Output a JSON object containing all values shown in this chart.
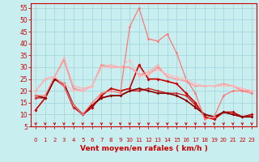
{
  "xlabel": "Vent moyen/en rafales ( km/h )",
  "xlim": [
    -0.5,
    23.5
  ],
  "ylim": [
    5,
    57
  ],
  "yticks": [
    5,
    10,
    15,
    20,
    25,
    30,
    35,
    40,
    45,
    50,
    55
  ],
  "xticks": [
    0,
    1,
    2,
    3,
    4,
    5,
    6,
    7,
    8,
    9,
    10,
    11,
    12,
    13,
    14,
    15,
    16,
    17,
    18,
    19,
    20,
    21,
    22,
    23
  ],
  "background_color": "#c8eef0",
  "grid_color": "#9fd4d8",
  "lines": [
    {
      "y": [
        12,
        17,
        25,
        23,
        14,
        10,
        13,
        18,
        21,
        20,
        21,
        31,
        25,
        25,
        24,
        23,
        19,
        15,
        9,
        8,
        11,
        11,
        9,
        10
      ],
      "color": "#cc0000",
      "lw": 1.2,
      "marker": "D",
      "ms": 2.0
    },
    {
      "y": [
        17,
        17,
        25,
        22,
        13,
        10,
        14,
        17,
        18,
        18,
        20,
        20,
        21,
        20,
        19,
        19,
        18,
        14,
        10,
        9,
        11,
        10,
        9,
        9
      ],
      "color": "#cc2222",
      "lw": 1.0,
      "marker": "D",
      "ms": 1.8
    },
    {
      "y": [
        18,
        17,
        25,
        23,
        14,
        10,
        14,
        17,
        18,
        18,
        20,
        21,
        20,
        19,
        19,
        18,
        16,
        13,
        10,
        9,
        11,
        10,
        9,
        9
      ],
      "color": "#880000",
      "lw": 1.2,
      "marker": "D",
      "ms": 1.8
    },
    {
      "y": [
        20,
        25,
        26,
        33,
        21,
        20,
        22,
        31,
        30,
        30,
        30,
        27,
        27,
        30,
        26,
        25,
        24,
        22,
        22,
        22,
        23,
        22,
        20,
        20
      ],
      "color": "#ff8888",
      "lw": 1.0,
      "marker": "D",
      "ms": 1.8
    },
    {
      "y": [
        20,
        25,
        26,
        34,
        22,
        21,
        22,
        30,
        31,
        30,
        30,
        27,
        28,
        31,
        26,
        25,
        24,
        22,
        22,
        22,
        23,
        22,
        21,
        20
      ],
      "color": "#ffaaaa",
      "lw": 0.8,
      "marker": "D",
      "ms": 1.5
    },
    {
      "y": [
        18,
        18,
        26,
        22,
        14,
        10,
        15,
        19,
        20,
        19,
        47,
        55,
        42,
        41,
        44,
        36,
        25,
        19,
        8,
        9,
        18,
        20,
        20,
        19
      ],
      "color": "#ff7777",
      "lw": 0.9,
      "marker": "D",
      "ms": 1.8
    },
    {
      "y": [
        20,
        25,
        26,
        23,
        20,
        20,
        22,
        30,
        30,
        30,
        33,
        26,
        27,
        29,
        27,
        26,
        25,
        23,
        22,
        22,
        22,
        22,
        21,
        20
      ],
      "color": "#ffbbbb",
      "lw": 0.8,
      "marker": "D",
      "ms": 1.5
    }
  ],
  "tick_color": "#cc0000",
  "tick_fontsize": 5,
  "xlabel_fontsize": 6.5,
  "xlabel_color": "#cc0000",
  "ytick_fontsize": 5.5
}
